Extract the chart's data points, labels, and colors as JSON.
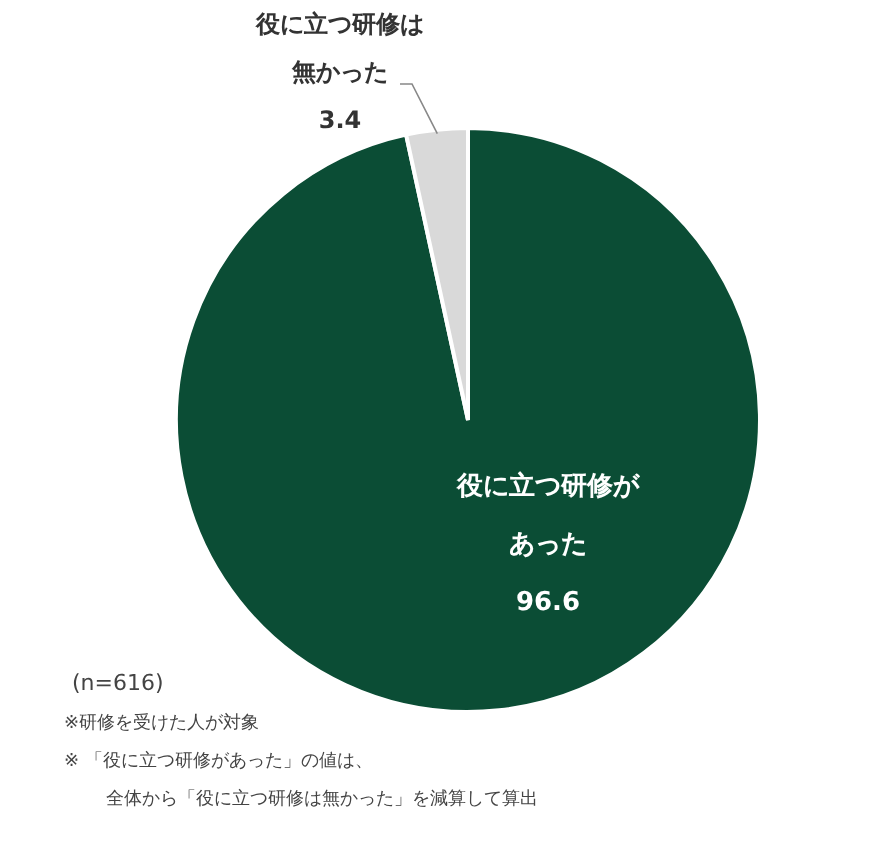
{
  "chart_data": {
    "type": "pie",
    "categories": [
      "役に立つ研修があった",
      "役に立つ研修は無かった"
    ],
    "values": [
      96.6,
      3.4
    ],
    "colors": [
      "#0b4d35",
      "#d9d9d9"
    ],
    "data_labels": true,
    "annotations": [
      "(n=616)",
      "※研修を受けた人が対象",
      "※ 「役に立つ研修があった」の値は、",
      "全体から「役に立つ研修は無かった」を減算して算出"
    ]
  }
}
